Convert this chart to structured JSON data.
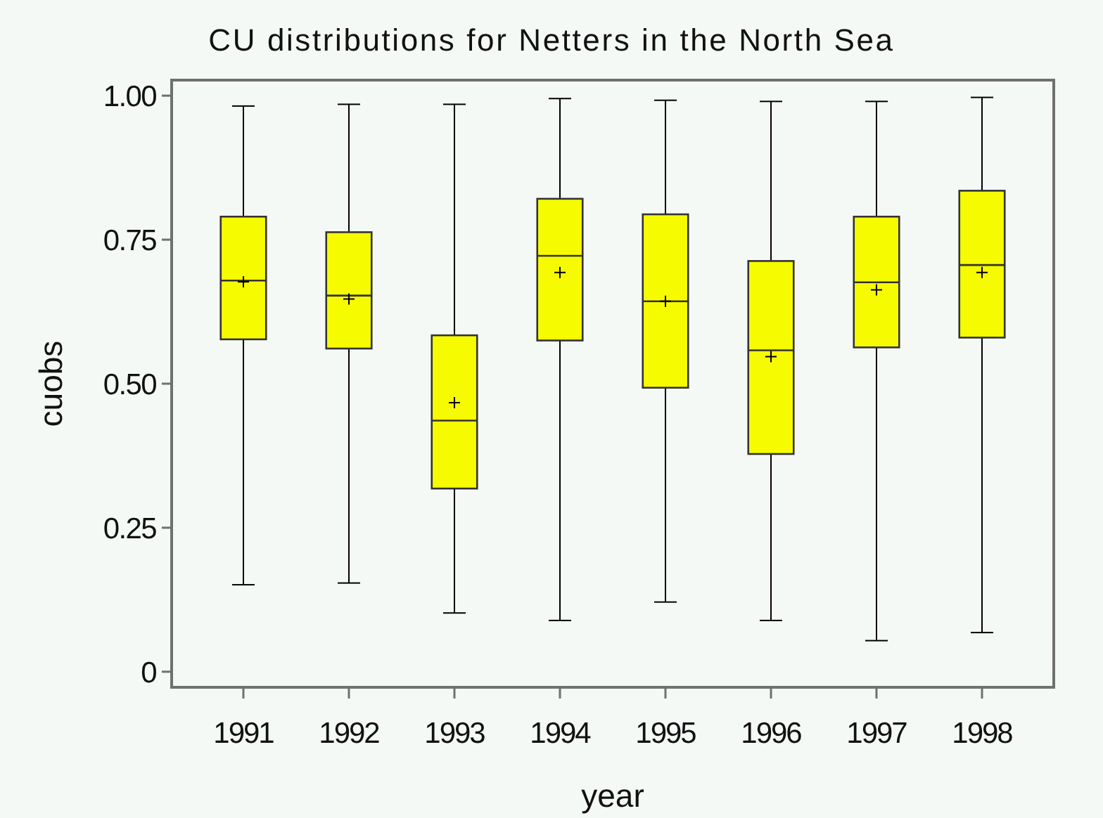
{
  "chart_data": {
    "type": "box",
    "title": "CU distributions for Netters in the North Sea",
    "xlabel": "year",
    "ylabel": "cuobs",
    "categories": [
      "1991",
      "1992",
      "1993",
      "1994",
      "1995",
      "1996",
      "1997",
      "1998"
    ],
    "color": "#f7fb00",
    "boxes": [
      {
        "low": 0.151,
        "q1": 0.577,
        "median": 0.679,
        "q3": 0.79,
        "high": 0.982,
        "mean": 0.677
      },
      {
        "low": 0.154,
        "q1": 0.561,
        "median": 0.653,
        "q3": 0.763,
        "high": 0.985,
        "mean": 0.647
      },
      {
        "low": 0.102,
        "q1": 0.318,
        "median": 0.436,
        "q3": 0.584,
        "high": 0.985,
        "mean": 0.467
      },
      {
        "low": 0.089,
        "q1": 0.575,
        "median": 0.722,
        "q3": 0.821,
        "high": 0.995,
        "mean": 0.693
      },
      {
        "low": 0.121,
        "q1": 0.493,
        "median": 0.643,
        "q3": 0.794,
        "high": 0.992,
        "mean": 0.643
      },
      {
        "low": 0.089,
        "q1": 0.378,
        "median": 0.558,
        "q3": 0.713,
        "high": 0.99,
        "mean": 0.547
      },
      {
        "low": 0.054,
        "q1": 0.563,
        "median": 0.676,
        "q3": 0.79,
        "high": 0.99,
        "mean": 0.663
      },
      {
        "low": 0.068,
        "q1": 0.58,
        "median": 0.706,
        "q3": 0.835,
        "high": 0.997,
        "mean": 0.693
      }
    ],
    "ylim": [
      -0.027,
      1.027
    ],
    "yticks": [
      0,
      0.25,
      {
        "value": 0.5,
        "label": "0.50"
      },
      0.75,
      {
        "value": 1,
        "label": "1.00"
      }
    ]
  }
}
